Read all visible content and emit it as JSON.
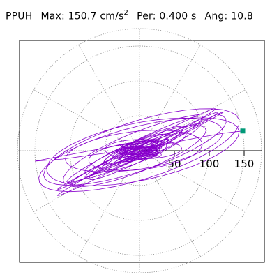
{
  "header": {
    "station": "PPUH",
    "max_label": "Max:",
    "max_value": "150.7",
    "max_unit_base": "cm/s",
    "max_unit_exp": "2",
    "per_label": "Per:",
    "per_value": "0.400 s",
    "ang_label": "Ang:",
    "ang_value": "10.8"
  },
  "colors": {
    "trace": "#8800cc",
    "marker": "#009977",
    "grid": "#888888",
    "axis": "#000000"
  },
  "chart_data": {
    "type": "scatter",
    "title": "",
    "radial_ticks": [
      50,
      100,
      150
    ],
    "radial_tick_labels": [
      "50",
      "100",
      "150"
    ],
    "rmax": 175,
    "spoke_interval_deg": 30,
    "max_point": {
      "r": 150.7,
      "angle_deg": 10.8
    },
    "trace_description_points": [
      [
        -150,
        -15
      ],
      [
        -110,
        -12
      ],
      [
        -60,
        -5
      ],
      [
        -20,
        0
      ],
      [
        30,
        8
      ],
      [
        80,
        18
      ],
      [
        120,
        25
      ],
      [
        148,
        28.3
      ]
    ]
  }
}
